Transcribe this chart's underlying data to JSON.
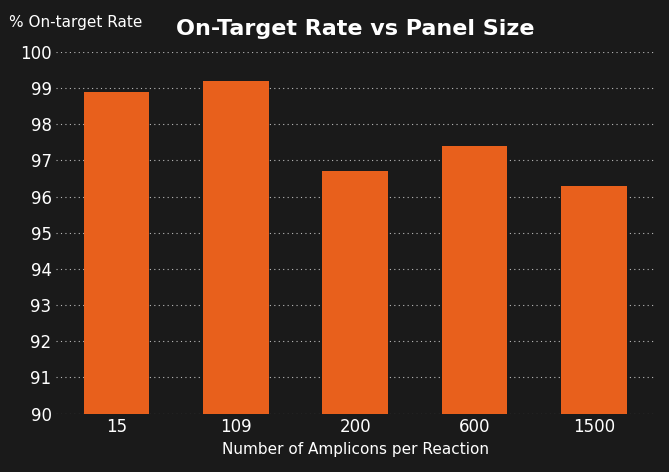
{
  "title": "On-Target Rate vs Panel Size",
  "xlabel": "Number of Amplicons per Reaction",
  "ylabel": "% On-target Rate",
  "categories": [
    "15",
    "109",
    "200",
    "600",
    "1500"
  ],
  "values": [
    98.9,
    99.2,
    96.7,
    97.4,
    96.3
  ],
  "bar_color": "#E8601C",
  "background_color": "#1a1a1a",
  "text_color": "#FFFFFF",
  "grid_color": "#FFFFFF",
  "ylim_min": 90,
  "ylim_max": 100,
  "yticks": [
    90,
    91,
    92,
    93,
    94,
    95,
    96,
    97,
    98,
    99,
    100
  ],
  "title_fontsize": 16,
  "label_fontsize": 11,
  "tick_fontsize": 12,
  "bar_width": 0.55
}
